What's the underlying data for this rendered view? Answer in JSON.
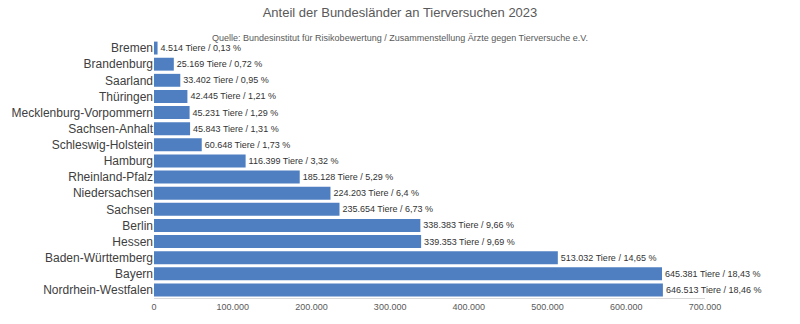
{
  "chart_data": {
    "type": "bar",
    "orientation": "horizontal",
    "title": "Anteil der Bundesländer an Tierversuchen 2023",
    "subtitle": "Quelle: Bundesinstitut für Risikobewertung / Zusammenstellung Ärzte gegen Tierversuche e.V.",
    "categories": [
      "Bremen",
      "Brandenburg",
      "Saarland",
      "Thüringen",
      "Mecklenburg-Vorpommern",
      "Sachsen-Anhalt",
      "Schleswig-Holstein",
      "Hamburg",
      "Rheinland-Pfalz",
      "Niedersachsen",
      "Sachsen",
      "Berlin",
      "Hessen",
      "Baden-Württemberg",
      "Bayern",
      "Nordrhein-Westfalen"
    ],
    "values": [
      4514,
      25169,
      33402,
      42445,
      45231,
      45843,
      60648,
      116399,
      185128,
      224203,
      235654,
      338383,
      339353,
      513032,
      645381,
      646513
    ],
    "value_labels": [
      "4.514 Tiere / 0,13 %",
      "25.169 Tiere / 0,72 %",
      "33.402 Tiere / 0,95 %",
      "42.445 Tiere / 1,21 %",
      "45.231 Tiere / 1,29 %",
      "45.843 Tiere / 1,31 %",
      "60.648 Tiere / 1,73 %",
      "116.399 Tiere / 3,32 %",
      "185.128 Tiere / 5,29 %",
      "224.203 Tiere / 6,4 %",
      "235.654 Tiere / 6,73 %",
      "338.383 Tiere / 9,66 %",
      "339.353 Tiere / 9,69 %",
      "513.032 Tiere / 14,65 %",
      "645.381 Tiere / 18,43 %",
      "646.513 Tiere / 18,46 %"
    ],
    "data_labels": true,
    "color": "#4f7fc1",
    "xlim": [
      0,
      700000
    ],
    "xticks": [
      0,
      {
        "value": 100000,
        "label": "100.000"
      },
      {
        "value": 200000,
        "label": "200.000"
      },
      {
        "value": 300000,
        "label": "300.000"
      },
      {
        "value": 400000,
        "label": "400.000"
      },
      {
        "value": 500000,
        "label": "500.000"
      },
      {
        "value": 600000,
        "label": "600.000"
      },
      {
        "value": 700000,
        "label": "700.000"
      }
    ],
    "grid": false
  }
}
